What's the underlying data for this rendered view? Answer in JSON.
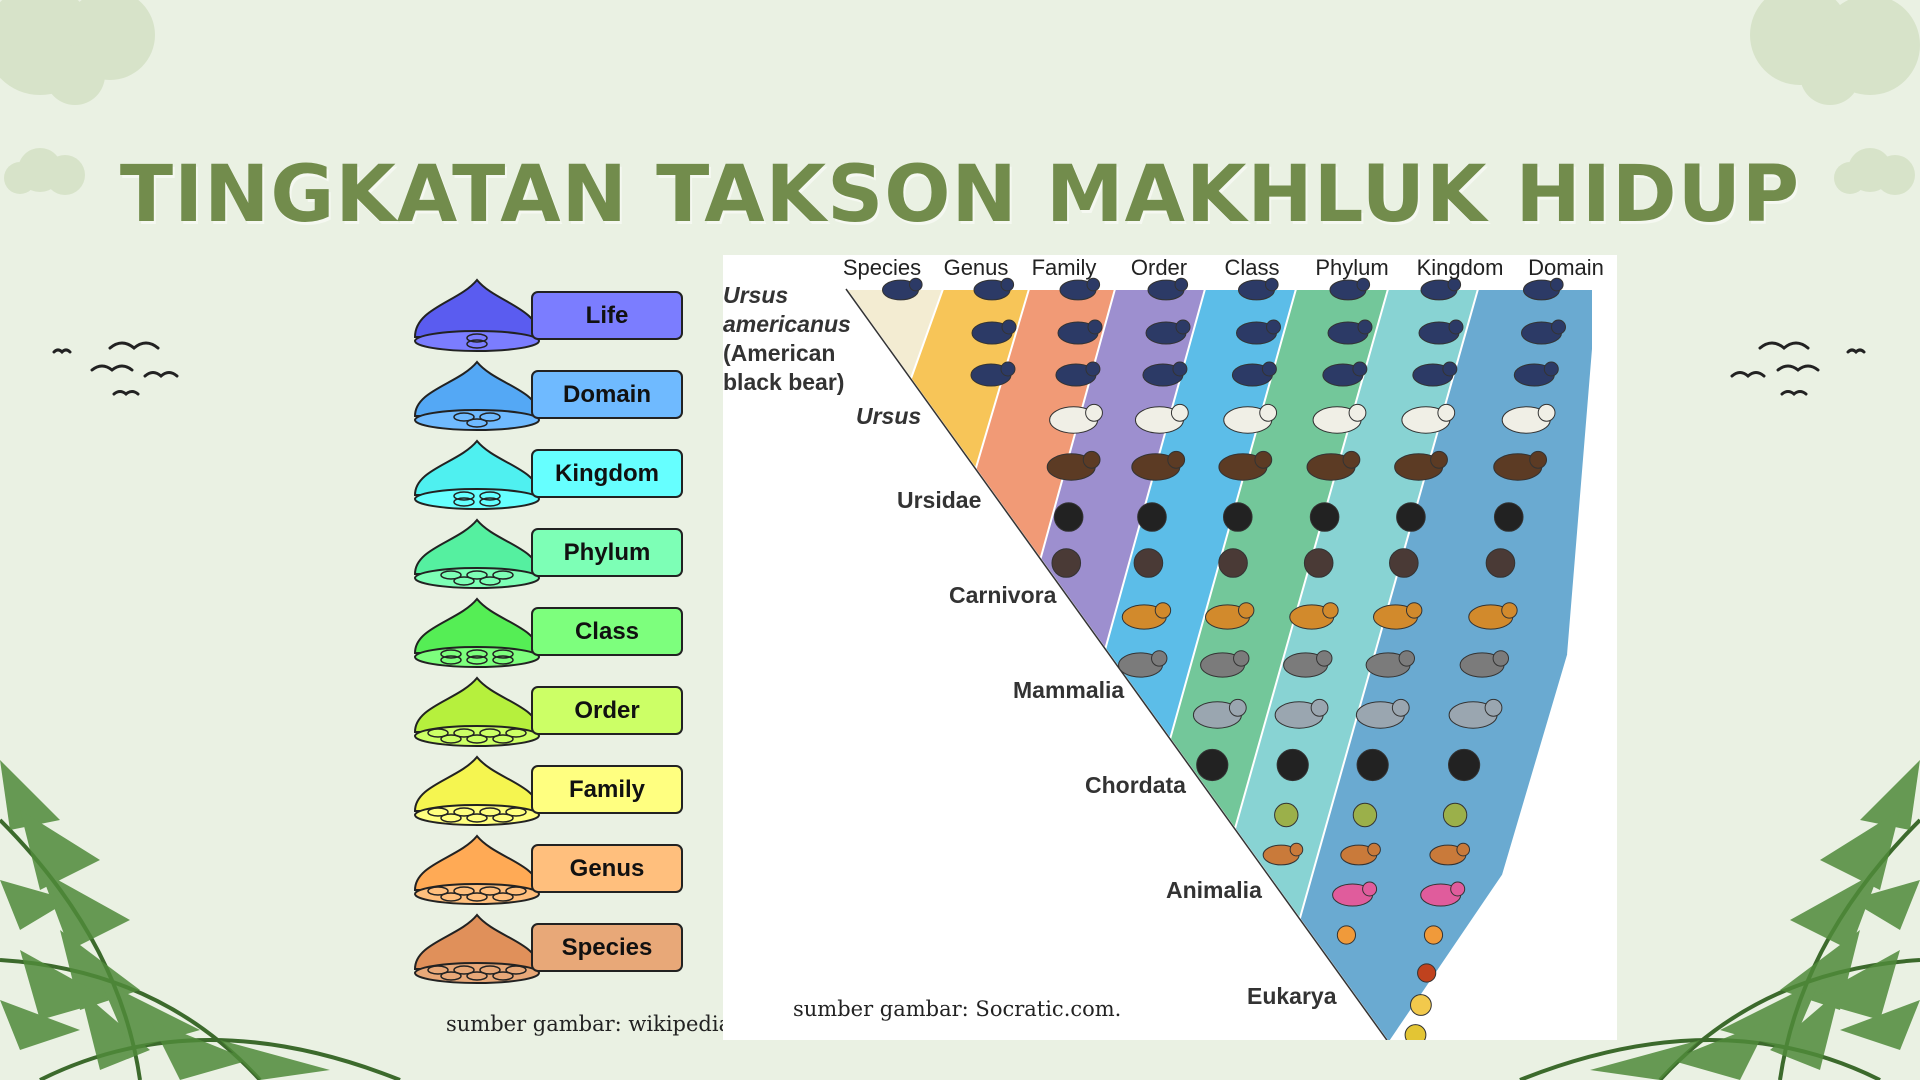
{
  "title": "TINGKATAN TAKSON MAKHLUK HIDUP",
  "left_diagram": {
    "ranks": [
      {
        "label": "Life",
        "color": "#7b7dff",
        "bell": "#5a5cf0"
      },
      {
        "label": "Domain",
        "color": "#6fbaff",
        "bell": "#54a8f5"
      },
      {
        "label": "Kingdom",
        "color": "#66ffff",
        "bell": "#4ff0f0"
      },
      {
        "label": "Phylum",
        "color": "#7dffb6",
        "bell": "#55f0a0"
      },
      {
        "label": "Class",
        "color": "#7dff7d",
        "bell": "#55ee55"
      },
      {
        "label": "Order",
        "color": "#ccff66",
        "bell": "#b6f03d"
      },
      {
        "label": "Family",
        "color": "#ffff80",
        "bell": "#f5f550"
      },
      {
        "label": "Genus",
        "color": "#ffbf7d",
        "bell": "#ffaa55"
      },
      {
        "label": "Species",
        "color": "#e8a878",
        "bell": "#e0905a"
      }
    ],
    "source": "sumber gambar: wikipedia"
  },
  "right_figure": {
    "columns": [
      "Species",
      "Genus",
      "Family",
      "Order",
      "Class",
      "Phylum",
      "Kingdom",
      "Domain"
    ],
    "species_name_italic1": "Ursus",
    "species_name_italic2": "americanus",
    "species_name_line3": "(American",
    "species_name_line4": "black bear)",
    "taxa": [
      "Ursus",
      "Ursidae",
      "Carnivora",
      "Mammalia",
      "Chordata",
      "Animalia",
      "Eukarya"
    ],
    "band_colors": [
      "#f3ecd2",
      "#f7c558",
      "#f19a76",
      "#9d8fcf",
      "#5cbde8",
      "#73c79a",
      "#88d3d3",
      "#6aaad1"
    ],
    "source": "sumber gambar: Socratic.com."
  }
}
